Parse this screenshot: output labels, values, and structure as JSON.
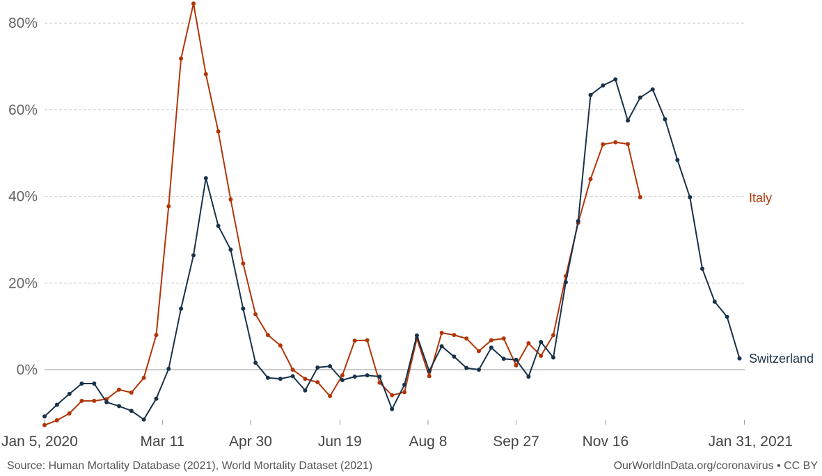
{
  "chart_data": {
    "type": "line",
    "x_tick_labels": [
      "Jan 5, 2020",
      "Mar 11",
      "Apr 30",
      "Jun 19",
      "Aug 8",
      "Sep 27",
      "Nov 16",
      "Jan 31, 2021"
    ],
    "x_tick_weeks": [
      0,
      9.5,
      16.6,
      23.8,
      30.9,
      38.0,
      45.2,
      56.4
    ],
    "y_ticks": [
      0,
      20,
      40,
      60,
      80
    ],
    "y_tick_labels": [
      "0%",
      "20%",
      "40%",
      "60%",
      "80%"
    ],
    "ylim": [
      -12,
      85
    ],
    "grid": "horizontal-dashed",
    "series": [
      {
        "name": "Italy",
        "color": "#b13507",
        "label_position": "end",
        "x": [
          0,
          1,
          2,
          3,
          4,
          5,
          6,
          7,
          8,
          9,
          10,
          11,
          12,
          13,
          14,
          15,
          16,
          17,
          18,
          19,
          20,
          21,
          22,
          23,
          24,
          25,
          26,
          27,
          28,
          29,
          30,
          31,
          32,
          33,
          34,
          35,
          36,
          37,
          38,
          39,
          40,
          41,
          42,
          43,
          44,
          45,
          46,
          47,
          48
        ],
        "values": [
          -12.8,
          -11.7,
          -10.1,
          -7.2,
          -7.2,
          -6.8,
          -4.6,
          -5.3,
          -1.9,
          8.0,
          37.7,
          71.8,
          84.5,
          68.2,
          55.0,
          39.3,
          24.5,
          12.8,
          8.0,
          5.6,
          0.0,
          -2.1,
          -2.9,
          -6.1,
          -1.3,
          6.7,
          6.8,
          -3.0,
          -5.9,
          -5.2,
          7.2,
          -1.5,
          8.5,
          8.0,
          7.2,
          4.3,
          6.8,
          7.2,
          1.0,
          6.1,
          3.2,
          8.0,
          21.6,
          33.9,
          44.0,
          52.0,
          52.5,
          52.1,
          39.8
        ]
      },
      {
        "name": "Switzerland",
        "color": "#18324a",
        "label_position": "end",
        "x": [
          0,
          1,
          2,
          3,
          4,
          5,
          6,
          7,
          8,
          9,
          10,
          11,
          12,
          13,
          14,
          15,
          16,
          17,
          18,
          19,
          20,
          21,
          22,
          23,
          24,
          25,
          26,
          27,
          28,
          29,
          30,
          31,
          32,
          33,
          34,
          35,
          36,
          37,
          38,
          39,
          40,
          41,
          42,
          43,
          44,
          45,
          46,
          47,
          48,
          49,
          50,
          51,
          52,
          53,
          54,
          55,
          56
        ],
        "values": [
          -10.8,
          -8.1,
          -5.6,
          -3.2,
          -3.2,
          -7.5,
          -8.4,
          -9.5,
          -11.5,
          -6.7,
          0.2,
          14.1,
          26.4,
          44.2,
          33.2,
          27.7,
          14.1,
          1.6,
          -1.9,
          -2.1,
          -1.5,
          -4.8,
          0.5,
          0.8,
          -2.4,
          -1.6,
          -1.3,
          -1.6,
          -9.1,
          -3.5,
          7.9,
          -0.3,
          5.4,
          3.0,
          0.4,
          0.0,
          5.1,
          2.5,
          2.3,
          -1.6,
          6.4,
          2.8,
          20.2,
          34.3,
          63.4,
          65.6,
          67.0,
          57.5,
          62.8,
          64.7,
          57.8,
          48.4,
          39.8,
          23.3,
          15.7,
          12.2,
          2.6
        ]
      }
    ]
  },
  "footer": {
    "source": "Source: Human Mortality Database (2021), World Mortality Dataset (2021)",
    "credit": "OurWorldInData.org/coronavirus • CC BY"
  }
}
